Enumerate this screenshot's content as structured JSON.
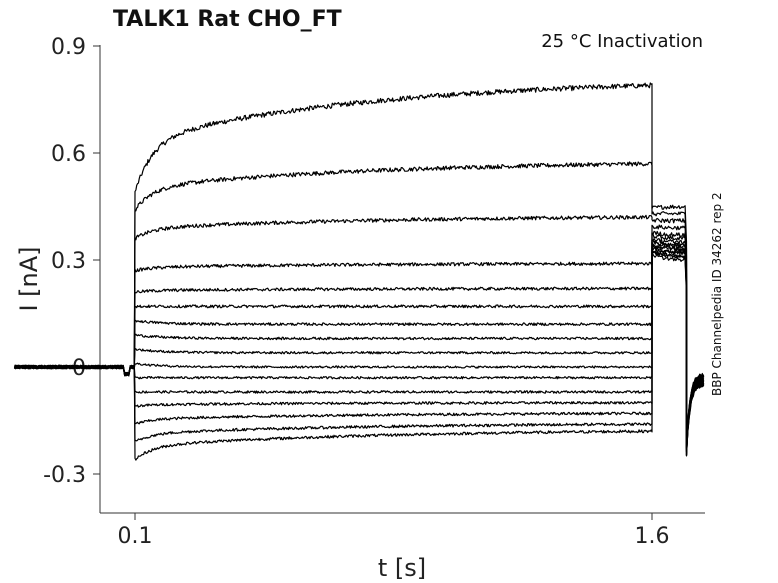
{
  "chart_data": {
    "type": "line",
    "title": "TALK1  Rat  CHO_FT",
    "subtitle": "25 °C  Inactivation",
    "side_note": "BBP Channelpedia ID 34262 rep 2",
    "xlabel": "t [s]",
    "ylabel": "I [nA]",
    "xlim": [
      -0.25,
      1.9
    ],
    "ylim": [
      -0.4,
      0.92
    ],
    "x_ticks": [
      0.1,
      1.6
    ],
    "x_tick_labels": [
      "0.1",
      "1.6"
    ],
    "y_ticks": [
      -0.3,
      0,
      0.3,
      0.6,
      0.9
    ],
    "y_tick_labels": [
      "-0.3",
      "0",
      "0.3",
      "0.6",
      "0.9"
    ],
    "grid": false,
    "legend": "none",
    "line_color": "#000000",
    "protocol": {
      "step_start": 0.1,
      "step_end": 1.6,
      "tail_start": 1.7,
      "baseline": 0.0
    },
    "series": [
      {
        "onset": 0.49,
        "final": 0.79,
        "tail": 0.45
      },
      {
        "onset": 0.44,
        "final": 0.57,
        "tail": 0.43
      },
      {
        "onset": 0.36,
        "final": 0.42,
        "tail": 0.41
      },
      {
        "onset": 0.27,
        "final": 0.29,
        "tail": 0.39
      },
      {
        "onset": 0.21,
        "final": 0.22,
        "tail": 0.37
      },
      {
        "onset": 0.17,
        "final": 0.17,
        "tail": 0.36
      },
      {
        "onset": 0.13,
        "final": 0.12,
        "tail": 0.35
      },
      {
        "onset": 0.09,
        "final": 0.08,
        "tail": 0.34
      },
      {
        "onset": 0.05,
        "final": 0.04,
        "tail": 0.34
      },
      {
        "onset": 0.01,
        "final": 0.0,
        "tail": 0.33
      },
      {
        "onset": -0.03,
        "final": -0.03,
        "tail": 0.33
      },
      {
        "onset": -0.07,
        "final": -0.07,
        "tail": 0.32
      },
      {
        "onset": -0.11,
        "final": -0.1,
        "tail": 0.32
      },
      {
        "onset": -0.16,
        "final": -0.13,
        "tail": 0.31
      },
      {
        "onset": -0.21,
        "final": -0.16,
        "tail": 0.31
      },
      {
        "onset": -0.26,
        "final": -0.18,
        "tail": 0.3
      }
    ]
  }
}
